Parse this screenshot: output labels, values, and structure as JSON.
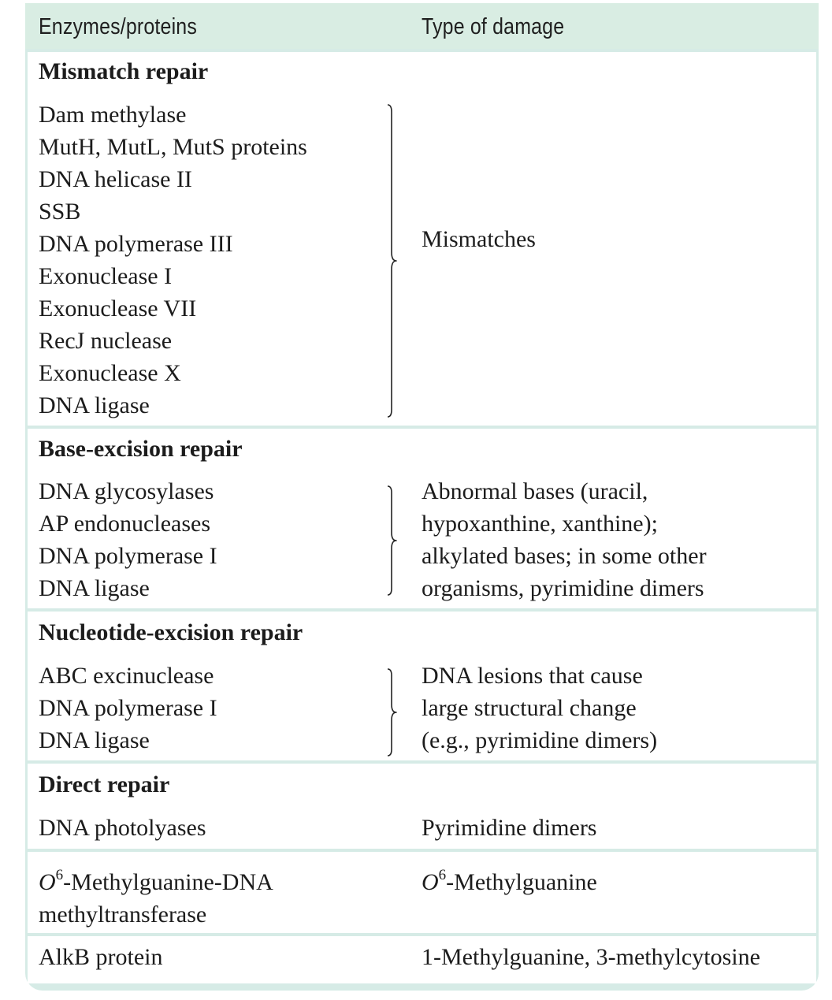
{
  "header": {
    "col1": "Enzymes/proteins",
    "col2": "Type of damage"
  },
  "sections": {
    "mismatch": {
      "title": "Mismatch repair",
      "items": [
        "Dam methylase",
        "MutH, MutL, MutS proteins",
        "DNA helicase II",
        "SSB",
        "DNA polymerase III",
        "Exonuclease I",
        "Exonuclease VII",
        "RecJ nuclease",
        "Exonuclease X",
        "DNA ligase"
      ],
      "damage": [
        "Mismatches"
      ]
    },
    "base_excision": {
      "title": "Base-excision repair",
      "items": [
        "DNA glycosylases",
        "AP endonucleases",
        "DNA polymerase I",
        "DNA ligase"
      ],
      "damage": [
        "Abnormal bases (uracil,",
        "hypoxanthine, xanthine);",
        "alkylated bases; in some other",
        "organisms, pyrimidine dimers"
      ]
    },
    "nucleotide_excision": {
      "title": "Nucleotide-excision repair",
      "items": [
        "ABC excinuclease",
        "DNA polymerase I",
        "DNA ligase"
      ],
      "damage": [
        "DNA lesions that cause",
        "large structural change",
        "(e.g., pyrimidine dimers)"
      ]
    },
    "direct": {
      "title": "Direct repair",
      "rows": [
        {
          "enzyme": "DNA photolyases",
          "damage": "Pyrimidine dimers"
        },
        {
          "enzyme_o": "O",
          "enzyme_sup": "6",
          "enzyme_rest": "-Methylguanine-DNA",
          "enzyme_line2": "methyltransferase",
          "damage_o": "O",
          "damage_sup": "6",
          "damage_rest": "-Methylguanine"
        },
        {
          "enzyme": "AlkB protein",
          "damage": "1-Methylguanine, 3-methylcytosine"
        }
      ]
    }
  }
}
